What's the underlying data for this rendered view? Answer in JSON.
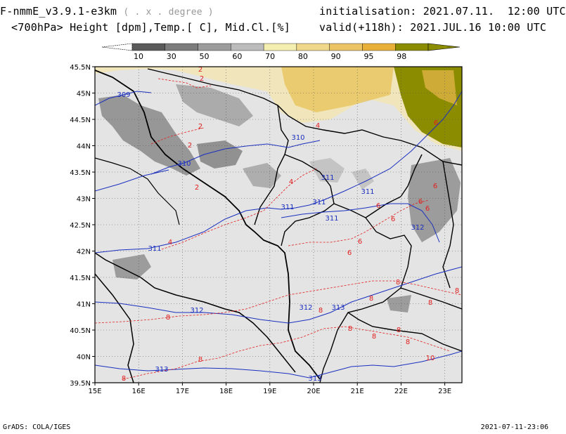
{
  "header": {
    "model": "F-nmmE_v3.9.1-e3km",
    "model_unit": "( . x . degree )",
    "variables": "<700hPa> Height [dpm],Temp.[ C], Mid.Cl.[%]",
    "initialisation": "initialisation: 2021.07.11.  12:00 UTC",
    "valid": "valid(+118h): 2021.JUL.16 10:00 UTC"
  },
  "colorbar": {
    "labels": [
      "10",
      "30",
      "50",
      "60",
      "70",
      "80",
      "90",
      "95",
      "98"
    ],
    "colors": [
      "#5a5a5a",
      "#7c7c7c",
      "#9c9c9c",
      "#bcbcbc",
      "#f4eeb0",
      "#f0d88a",
      "#ecc464",
      "#e8b038",
      "#8c8c00"
    ]
  },
  "axes": {
    "x_ticks": [
      "15E",
      "16E",
      "17E",
      "18E",
      "19E",
      "20E",
      "21E",
      "22E",
      "23E"
    ],
    "y_ticks": [
      "45.5N",
      "45N",
      "44.5N",
      "44N",
      "43.5N",
      "43N",
      "42.5N",
      "42N",
      "41.5N",
      "41N",
      "40.5N",
      "40N",
      "39.5N"
    ]
  },
  "contours": {
    "height_labels": [
      "309",
      "310",
      "310",
      "311",
      "311",
      "311",
      "311",
      "311",
      "311",
      "312",
      "312",
      "312",
      "313",
      "313",
      "313"
    ],
    "temp_labels": [
      "2",
      "2",
      "2",
      "2",
      "2",
      "4",
      "4",
      "4",
      "6",
      "6",
      "6",
      "6",
      "6",
      "6",
      "6",
      "6",
      "8",
      "8",
      "8",
      "8",
      "8",
      "8",
      "8",
      "8",
      "8",
      "8",
      "8",
      "8",
      "10"
    ],
    "height_color": "#1a2fbf",
    "temp_color": "#e02020"
  },
  "footer": {
    "left": "GrADS: COLA/IGES",
    "right": "2021-07-11-23:06"
  }
}
